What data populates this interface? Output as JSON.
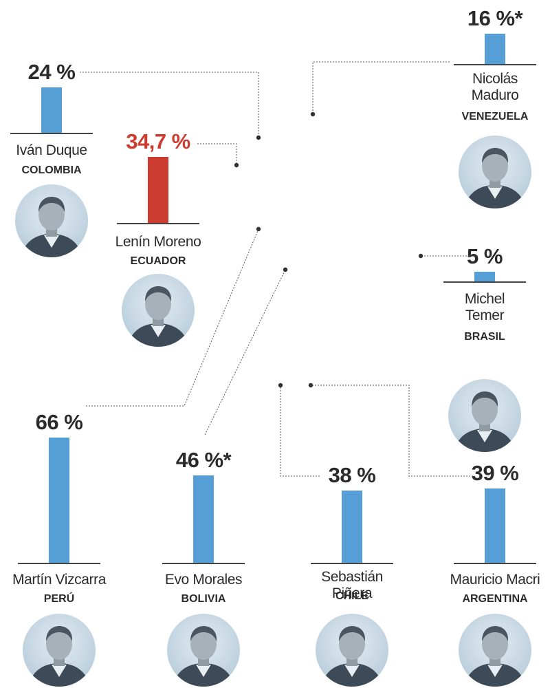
{
  "chart_data": {
    "type": "bar",
    "categories": [
      "COLOMBIA",
      "ECUADOR",
      "VENEZUELA",
      "BRASIL",
      "PERÚ",
      "BOLIVIA",
      "CHILE",
      "ARGENTINA"
    ],
    "values": [
      24,
      34.7,
      16,
      5,
      66,
      46,
      38,
      39
    ],
    "ylim": [
      0,
      66
    ],
    "leaders": [
      {
        "name": "Iván Duque",
        "country": "COLOMBIA",
        "value": 24,
        "label": "24 %",
        "highlight": false,
        "photo": "portrait-duque"
      },
      {
        "name": "Lenín Moreno",
        "country": "ECUADOR",
        "value": 34.7,
        "label": "34,7 %",
        "highlight": true,
        "photo": "portrait-moreno"
      },
      {
        "name": "Nicolás\nMaduro",
        "country": "VENEZUELA",
        "value": 16,
        "label": "16 %*",
        "highlight": false,
        "photo": "portrait-maduro"
      },
      {
        "name": "Michel\nTemer",
        "country": "BRASIL",
        "value": 5,
        "label": "5 %",
        "highlight": false,
        "photo": "portrait-temer"
      },
      {
        "name": "Martín Vizcarra",
        "country": "PERÚ",
        "value": 66,
        "label": "66 %",
        "highlight": false,
        "photo": "portrait-vizcarra"
      },
      {
        "name": "Evo Morales",
        "country": "BOLIVIA",
        "value": 46,
        "label": "46 %*",
        "highlight": false,
        "photo": "portrait-morales"
      },
      {
        "name": "Sebastián Piñera",
        "country": "CHILE",
        "value": 38,
        "label": "38 %",
        "highlight": false,
        "photo": "portrait-pinera"
      },
      {
        "name": "Mauricio Macri",
        "country": "ARGENTINA",
        "value": 39,
        "label": "39 %",
        "highlight": false,
        "photo": "portrait-macri"
      }
    ]
  },
  "colors": {
    "bar": "#559ed6",
    "highlight": "#cc3b2f",
    "text": "#2b2b2b",
    "connector": "#555555",
    "photo_bg": "#c6d7e3"
  }
}
